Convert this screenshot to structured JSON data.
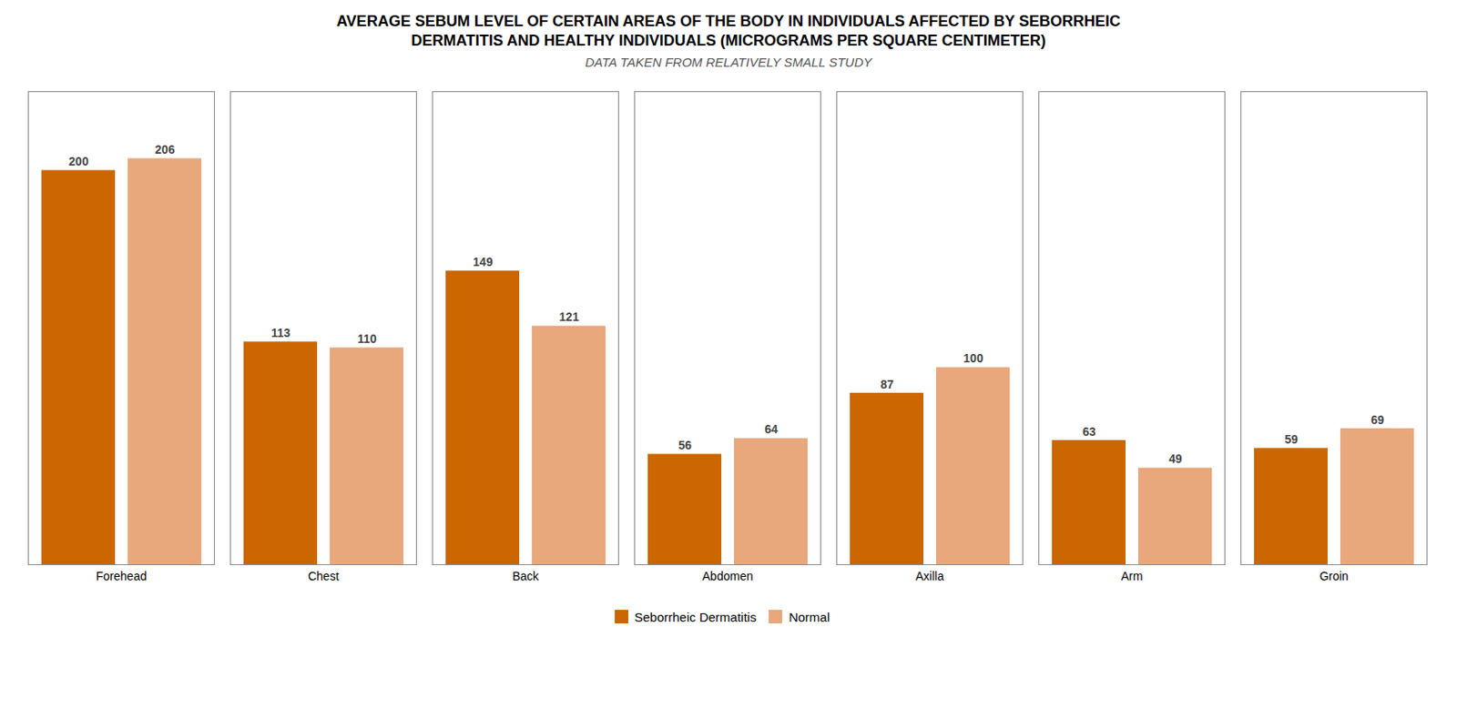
{
  "chart_data": {
    "type": "bar",
    "title": "AVERAGE SEBUM LEVEL OF CERTAIN AREAS OF THE BODY IN INDIVIDUALS AFFECTED BY SEBORRHEIC DERMATITIS AND HEALTHY INDIVIDUALS (MICROGRAMS PER SQUARE CENTIMETER)",
    "subtitle": "DATA TAKEN FROM RELATIVELY SMALL STUDY",
    "categories": [
      "Forehead",
      "Chest",
      "Back",
      "Abdomen",
      "Axilla",
      "Arm",
      "Groin"
    ],
    "series": [
      {
        "name": "Seborrheic Dermatitis",
        "color": "#CC6600",
        "values": [
          200,
          113,
          149,
          56,
          87,
          63,
          59
        ]
      },
      {
        "name": "Normal",
        "color": "#E8A87C",
        "values": [
          206,
          110,
          121,
          64,
          100,
          49,
          69
        ]
      }
    ],
    "ylim": [
      0,
      240
    ],
    "tick_labels": "x",
    "data_labels": true,
    "grid": false,
    "legend": "bottom"
  }
}
